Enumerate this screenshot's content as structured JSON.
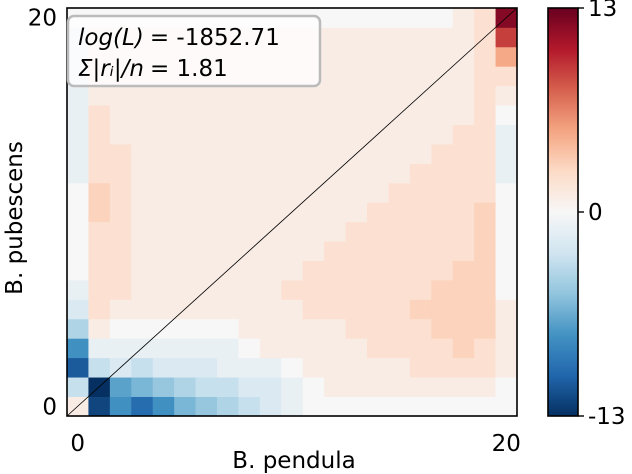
{
  "chart_data": {
    "type": "heatmap",
    "xlabel": "B. pendula",
    "ylabel": "B. pubescens",
    "x_ticks": [
      "0",
      "20"
    ],
    "y_ticks": [
      "0",
      "20"
    ],
    "x_range": [
      0,
      20
    ],
    "y_range": [
      0,
      20
    ],
    "colorbar": {
      "min": -13,
      "max": 13,
      "ticks": [
        "13",
        "0",
        "-13"
      ],
      "colormap": "RdBu_r"
    },
    "annotation": {
      "log_l_label": "log(L)",
      "log_l_value": "= -1852.71",
      "residual_label": "Σ|rᵢ|/n",
      "residual_value": "= 1.81"
    },
    "diagonal_line": true,
    "residual_matrix_note": "rows indexed by B. pubescens (0 at bottom), columns by B. pendula (0 at left)",
    "values": [
      [
        1,
        -12,
        -8,
        -10,
        -8,
        -6,
        -5,
        -4,
        -3,
        -2,
        -1,
        0,
        0,
        0,
        0,
        0,
        0,
        0,
        0,
        0,
        0
      ],
      [
        -3,
        -13,
        -7,
        -6,
        -5,
        -4,
        -3,
        -3,
        -2,
        -2,
        -1,
        0,
        1,
        1,
        1,
        1,
        1,
        1,
        1,
        1,
        0
      ],
      [
        -11,
        -3,
        -2,
        -3,
        -2,
        -2,
        -2,
        -1,
        -1,
        -1,
        0,
        1,
        1,
        1,
        1,
        1,
        2,
        2,
        2,
        2,
        1
      ],
      [
        -8,
        -1,
        -1,
        -1,
        -1,
        -1,
        -1,
        -1,
        0,
        1,
        1,
        1,
        1,
        1,
        2,
        2,
        2,
        2,
        3,
        2,
        1
      ],
      [
        -4,
        1,
        0,
        0,
        0,
        0,
        0,
        0,
        1,
        1,
        1,
        1,
        1,
        2,
        2,
        2,
        2,
        3,
        3,
        3,
        1
      ],
      [
        -2,
        2,
        1,
        1,
        1,
        1,
        1,
        1,
        1,
        1,
        1,
        2,
        2,
        2,
        2,
        2,
        3,
        3,
        3,
        3,
        1
      ],
      [
        -1,
        2,
        2,
        1,
        1,
        1,
        1,
        1,
        1,
        1,
        2,
        2,
        2,
        2,
        2,
        2,
        2,
        3,
        3,
        3,
        0
      ],
      [
        0,
        2,
        2,
        1,
        1,
        1,
        1,
        1,
        1,
        1,
        1,
        2,
        2,
        2,
        2,
        2,
        2,
        2,
        3,
        3,
        0
      ],
      [
        0,
        2,
        2,
        1,
        1,
        1,
        1,
        1,
        1,
        1,
        1,
        1,
        2,
        2,
        2,
        2,
        2,
        2,
        2,
        3,
        0
      ],
      [
        0,
        2,
        2,
        1,
        1,
        1,
        1,
        1,
        1,
        1,
        1,
        1,
        1,
        2,
        2,
        2,
        2,
        2,
        2,
        3,
        0
      ],
      [
        0,
        3,
        2,
        1,
        1,
        1,
        1,
        1,
        1,
        1,
        1,
        1,
        1,
        1,
        2,
        2,
        2,
        2,
        2,
        3,
        0
      ],
      [
        0,
        3,
        2,
        1,
        1,
        1,
        1,
        1,
        1,
        1,
        1,
        1,
        1,
        1,
        1,
        2,
        2,
        2,
        2,
        2,
        0
      ],
      [
        -1,
        2,
        2,
        1,
        1,
        1,
        1,
        1,
        1,
        1,
        1,
        1,
        1,
        1,
        1,
        1,
        2,
        2,
        2,
        2,
        -1
      ],
      [
        -1,
        2,
        2,
        1,
        1,
        1,
        1,
        1,
        1,
        1,
        1,
        1,
        1,
        1,
        1,
        1,
        1,
        2,
        2,
        2,
        -1
      ],
      [
        -1,
        2,
        1,
        1,
        1,
        1,
        1,
        1,
        1,
        1,
        1,
        1,
        1,
        1,
        1,
        1,
        1,
        1,
        2,
        2,
        -1
      ],
      [
        -1,
        2,
        1,
        1,
        1,
        1,
        1,
        1,
        1,
        1,
        1,
        1,
        1,
        1,
        1,
        1,
        1,
        1,
        1,
        2,
        0
      ],
      [
        -1,
        1,
        1,
        1,
        1,
        1,
        1,
        1,
        1,
        1,
        1,
        1,
        1,
        1,
        1,
        1,
        1,
        1,
        1,
        2,
        1
      ],
      [
        -1,
        1,
        1,
        1,
        1,
        1,
        1,
        1,
        1,
        1,
        1,
        1,
        1,
        1,
        1,
        1,
        1,
        1,
        1,
        2,
        2
      ],
      [
        -1,
        1,
        1,
        1,
        1,
        1,
        1,
        1,
        1,
        1,
        1,
        1,
        1,
        1,
        1,
        1,
        1,
        1,
        1,
        2,
        5
      ],
      [
        -1,
        1,
        1,
        1,
        1,
        1,
        1,
        1,
        1,
        1,
        1,
        1,
        1,
        1,
        1,
        1,
        1,
        1,
        1,
        2,
        9
      ],
      [
        0,
        0,
        0,
        0,
        0,
        0,
        0,
        0,
        0,
        0,
        0,
        0,
        0,
        0,
        0,
        0,
        0,
        0,
        1,
        2,
        12
      ]
    ]
  }
}
